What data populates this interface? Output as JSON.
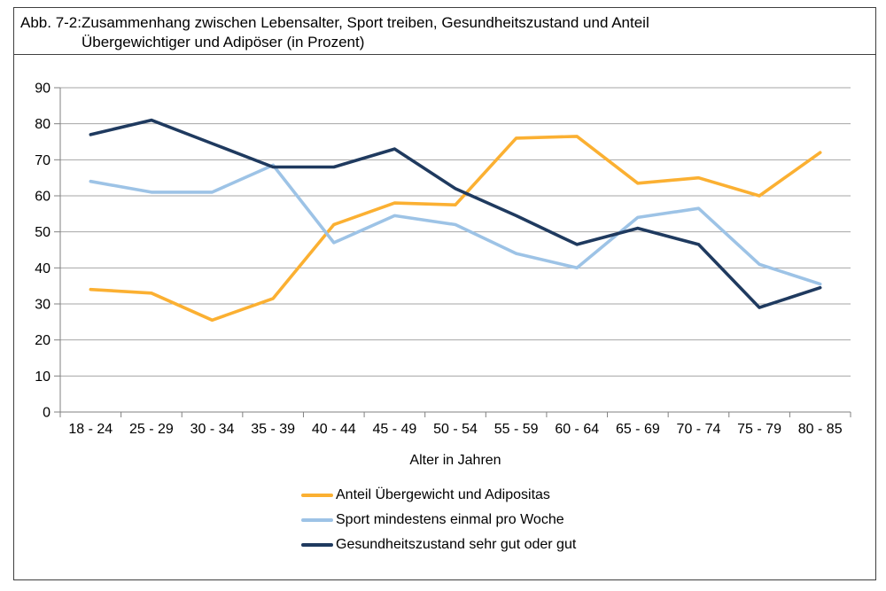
{
  "figure": {
    "label": "Abb. 7-2:",
    "title_line1": "Zusammenhang zwischen Lebensalter, Sport treiben, Gesundheitszustand und Anteil",
    "title_line2": "Übergewichtiger und Adipöser (in Prozent)"
  },
  "chart_data": {
    "type": "line",
    "title": "Zusammenhang zwischen Lebensalter, Sport treiben, Gesundheitszustand und Anteil Übergewichtiger und Adipöser (in Prozent)",
    "categories": [
      "18 - 24",
      "25 - 29",
      "30 - 34",
      "35 - 39",
      "40 - 44",
      "45 - 49",
      "50 - 54",
      "55 - 59",
      "60 - 64",
      "65 - 69",
      "70 - 74",
      "75 - 79",
      "80 - 85"
    ],
    "series": [
      {
        "name": "Anteil Übergewicht und Adipositas",
        "color": "#FBB032",
        "values": [
          34,
          33,
          25.5,
          31.5,
          52,
          58,
          57.5,
          76,
          76.5,
          63.5,
          65,
          60,
          72
        ]
      },
      {
        "name": "Sport mindestens einmal pro Woche",
        "color": "#9DC3E6",
        "values": [
          64,
          61,
          61,
          68.5,
          47,
          54.5,
          52,
          44,
          40,
          54,
          56.5,
          41,
          35.5
        ]
      },
      {
        "name": "Gesundheitszustand sehr gut oder gut",
        "color": "#1F3A5F",
        "values": [
          77,
          81,
          74.5,
          68,
          68,
          73,
          62,
          54.5,
          46.5,
          51,
          46.5,
          29,
          34.5
        ]
      }
    ],
    "xlabel": "Alter in Jahren",
    "ylabel": "",
    "ylim": [
      0,
      90
    ],
    "ytick_step": 10,
    "grid": true,
    "legend_position": "bottom-left-of-center",
    "colors": {
      "gridline": "#A6A6A6",
      "axis": "#808080",
      "text": "#000000"
    }
  }
}
